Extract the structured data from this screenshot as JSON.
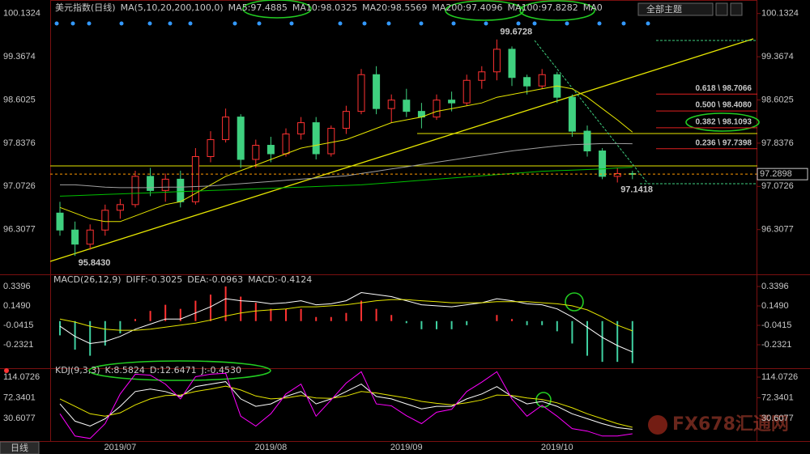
{
  "ui": {
    "theme_button": "全部主题",
    "tab": "日线",
    "watermark": "FX678汇通网"
  },
  "chart_data": [
    {
      "type": "candlestick",
      "legend": [
        {
          "text": "美元指数(日线)",
          "color": "#ffffff"
        },
        {
          "text": "MA(5,10,20,200,100,0)",
          "color": "#ffffff"
        },
        {
          "text": "MA5:97.4885",
          "color": "#ffffff"
        },
        {
          "text": "MA10:98.0325",
          "color": "#e6e600"
        },
        {
          "text": "MA20:98.5569",
          "color": "#ff00ff"
        },
        {
          "text": "MA200:97.4096",
          "color": "#00c000"
        },
        {
          "text": "MA100:97.8282",
          "color": "#a0a0a0"
        },
        {
          "text": "MA0",
          "color": "#ff4040"
        }
      ],
      "categories": [
        null,
        null,
        null,
        null,
        "2019/07",
        null,
        null,
        null,
        null,
        null,
        null,
        null,
        null,
        null,
        "2019/08",
        null,
        null,
        null,
        null,
        null,
        null,
        null,
        null,
        "2019/09",
        null,
        null,
        null,
        null,
        null,
        null,
        null,
        null,
        null,
        "2019/10",
        null,
        null,
        null,
        null,
        null
      ],
      "open": [
        96.6,
        96.3,
        96.05,
        96.3,
        96.65,
        96.75,
        97.25,
        97.0,
        97.2,
        96.8,
        97.6,
        97.9,
        98.3,
        97.55,
        97.8,
        97.65,
        98.0,
        98.2,
        97.65,
        98.1,
        98.4,
        99.05,
        98.45,
        98.6,
        98.4,
        98.3,
        98.6,
        98.55,
        98.95,
        99.1,
        99.5,
        99.0,
        98.85,
        99.05,
        98.65,
        98.05,
        97.7,
        97.25,
        97.3
      ],
      "high": [
        96.8,
        96.45,
        96.4,
        96.75,
        96.85,
        97.35,
        97.4,
        97.3,
        97.35,
        97.75,
        98.05,
        98.45,
        98.35,
        97.9,
        97.95,
        98.1,
        98.3,
        98.3,
        98.15,
        98.5,
        99.15,
        99.2,
        98.7,
        98.8,
        98.55,
        98.7,
        98.75,
        99.05,
        99.2,
        99.6728,
        99.55,
        99.05,
        99.15,
        99.1,
        98.7,
        98.15,
        97.75,
        97.4,
        97.35
      ],
      "low": [
        96.2,
        95.843,
        95.95,
        96.2,
        96.5,
        96.7,
        96.9,
        96.8,
        96.7,
        96.75,
        97.5,
        97.85,
        97.4,
        97.4,
        97.5,
        97.6,
        97.9,
        97.55,
        97.6,
        98.0,
        98.35,
        98.35,
        98.2,
        98.3,
        98.1,
        98.25,
        98.4,
        98.5,
        98.8,
        98.95,
        98.85,
        98.7,
        98.8,
        98.55,
        97.95,
        97.6,
        97.2,
        97.1418,
        97.2
      ],
      "close": [
        96.3,
        96.05,
        96.3,
        96.65,
        96.75,
        97.25,
        97.0,
        97.2,
        96.8,
        97.6,
        97.9,
        98.3,
        97.55,
        97.8,
        97.65,
        98.0,
        98.2,
        97.65,
        98.1,
        98.4,
        99.05,
        98.45,
        98.6,
        98.4,
        98.3,
        98.6,
        98.55,
        98.95,
        99.1,
        99.5,
        99.0,
        98.85,
        99.05,
        98.65,
        98.05,
        97.7,
        97.25,
        97.3,
        97.2898
      ],
      "up_color": "#ff3232",
      "down_color": "#3fd07f",
      "series": [
        {
          "color": "#e6e600",
          "values": [
            96.7,
            96.6,
            96.5,
            96.45,
            96.45,
            96.55,
            96.65,
            96.75,
            96.8,
            96.95,
            97.1,
            97.25,
            97.35,
            97.45,
            97.55,
            97.65,
            97.75,
            97.8,
            97.85,
            97.9,
            98.0,
            98.1,
            98.2,
            98.25,
            98.3,
            98.4,
            98.45,
            98.5,
            98.55,
            98.65,
            98.7,
            98.75,
            98.8,
            98.85,
            98.8,
            98.65,
            98.45,
            98.25,
            98.0325
          ]
        },
        {
          "color": "#a0a0a0",
          "values": [
            97.1,
            97.1,
            97.08,
            97.06,
            97.05,
            97.05,
            97.05,
            97.06,
            97.06,
            97.07,
            97.08,
            97.1,
            97.12,
            97.14,
            97.16,
            97.18,
            97.2,
            97.22,
            97.24,
            97.26,
            97.3,
            97.34,
            97.38,
            97.42,
            97.46,
            97.5,
            97.54,
            97.58,
            97.62,
            97.66,
            97.7,
            97.73,
            97.76,
            97.79,
            97.81,
            97.82,
            97.83,
            97.83,
            97.8282
          ]
        },
        {
          "color": "#00c000",
          "values": [
            96.9,
            96.91,
            96.92,
            96.93,
            96.94,
            96.95,
            96.96,
            96.97,
            96.98,
            96.99,
            97.0,
            97.01,
            97.02,
            97.03,
            97.04,
            97.05,
            97.06,
            97.07,
            97.08,
            97.09,
            97.1,
            97.12,
            97.14,
            97.16,
            97.18,
            97.2,
            97.22,
            97.24,
            97.26,
            97.28,
            97.3,
            97.32,
            97.34,
            97.35,
            97.36,
            97.37,
            97.38,
            97.4,
            97.4096
          ]
        }
      ],
      "ylim": [
        95.53,
        100.3
      ],
      "yticks": [
        100.1324,
        99.3674,
        98.6025,
        97.8376,
        97.0726,
        96.3077
      ],
      "annotations": [
        {
          "value": 99.6728,
          "label": "99.6728",
          "color": "#ff4040"
        },
        {
          "value": 95.843,
          "label": "95.8430",
          "color": "#9fe0a0"
        },
        {
          "value": 97.1418,
          "label": "97.1418",
          "color": "#3fd07f"
        }
      ],
      "last_price": {
        "value": 97.2898,
        "label": "97.2898"
      },
      "fib_levels": [
        {
          "value": 98.7066,
          "label": "0.618 \\ 98.7066"
        },
        {
          "value": 98.408,
          "label": "0.500 \\ 98.4080"
        },
        {
          "value": 98.1093,
          "label": "0.382 \\ 98.1093"
        },
        {
          "value": 97.7398,
          "label": "0.236 \\ 97.7398"
        }
      ]
    },
    {
      "type": "macd",
      "legend": [
        {
          "text": "MACD(26,12,9)",
          "color": "#ffffff"
        },
        {
          "text": "DIFF:-0.3025",
          "color": "#ffffff"
        },
        {
          "text": "DEA:-0.0963",
          "color": "#e6e600"
        },
        {
          "text": "MACD:-0.4124",
          "color": "#ff00ff"
        }
      ],
      "bars": [
        -0.14,
        -0.28,
        -0.34,
        -0.24,
        -0.12,
        0.02,
        0.1,
        0.16,
        0.12,
        0.2,
        0.26,
        0.34,
        0.24,
        0.18,
        0.12,
        0.12,
        0.12,
        0.04,
        0.04,
        0.08,
        0.2,
        0.12,
        0.06,
        -0.02,
        -0.08,
        -0.08,
        -0.08,
        -0.04,
        0.0,
        0.06,
        0.02,
        -0.04,
        -0.04,
        -0.1,
        -0.22,
        -0.34,
        -0.4,
        -0.4,
        -0.4124
      ],
      "up_color": "#ff3232",
      "down_color": "#3fd0a0",
      "series": [
        {
          "color": "#ffffff",
          "values": [
            -0.05,
            -0.15,
            -0.22,
            -0.2,
            -0.15,
            -0.08,
            -0.03,
            0.02,
            0.02,
            0.08,
            0.14,
            0.22,
            0.2,
            0.19,
            0.17,
            0.18,
            0.2,
            0.16,
            0.17,
            0.2,
            0.28,
            0.26,
            0.24,
            0.2,
            0.16,
            0.15,
            0.14,
            0.16,
            0.18,
            0.22,
            0.2,
            0.17,
            0.16,
            0.12,
            0.04,
            -0.06,
            -0.16,
            -0.24,
            -0.3025
          ]
        },
        {
          "color": "#e6e600",
          "values": [
            0.02,
            -0.01,
            -0.05,
            -0.08,
            -0.09,
            -0.09,
            -0.08,
            -0.06,
            -0.04,
            -0.02,
            0.01,
            0.05,
            0.08,
            0.1,
            0.11,
            0.12,
            0.14,
            0.14,
            0.15,
            0.16,
            0.18,
            0.2,
            0.21,
            0.21,
            0.2,
            0.19,
            0.18,
            0.18,
            0.18,
            0.19,
            0.19,
            0.19,
            0.18,
            0.17,
            0.15,
            0.11,
            0.04,
            -0.04,
            -0.0963
          ]
        }
      ],
      "ylim": [
        -0.4386,
        0.4508
      ],
      "yticks": [
        0.3396,
        {
          "value": 0.149,
          "label": "0.1490"
        },
        -0.0415,
        -0.2321
      ]
    },
    {
      "type": "kdj",
      "legend": [
        {
          "text": "KDJ(9,3,3)",
          "color": "#ffffff"
        },
        {
          "text": "K:8.5824",
          "color": "#ffffff"
        },
        {
          "text": "D:12.6471",
          "color": "#e6e600"
        },
        {
          "text": "J:-0.4530",
          "color": "#ff00ff"
        }
      ],
      "series": [
        {
          "color": "#ffffff",
          "values": [
            60,
            25,
            15,
            30,
            55,
            85,
            90,
            85,
            75,
            95,
            100,
            105,
            70,
            55,
            60,
            75,
            85,
            60,
            70,
            85,
            100,
            75,
            70,
            60,
            50,
            55,
            55,
            70,
            80,
            95,
            75,
            60,
            65,
            55,
            40,
            30,
            20,
            12,
            8.5824
          ]
        },
        {
          "color": "#e6e600",
          "values": [
            70,
            55,
            40,
            35,
            42,
            58,
            70,
            77,
            78,
            85,
            90,
            96,
            88,
            76,
            70,
            72,
            77,
            72,
            71,
            76,
            85,
            82,
            77,
            72,
            65,
            61,
            58,
            62,
            68,
            78,
            77,
            72,
            69,
            62,
            52,
            40,
            30,
            20,
            12.6471
          ]
        },
        {
          "color": "#ff00ff",
          "values": [
            40,
            -5,
            -10,
            20,
            80,
            120,
            118,
            100,
            70,
            115,
            120,
            122,
            35,
            15,
            40,
            80,
            100,
            35,
            68,
            102,
            125,
            60,
            56,
            36,
            20,
            43,
            49,
            85,
            104,
            125,
            70,
            35,
            57,
            35,
            10,
            5,
            -5,
            -5,
            -0.453
          ]
        }
      ],
      "ylim": [
        -15.2,
        127.2
      ],
      "yticks": [
        114.0726,
        72.3401,
        30.6077
      ]
    }
  ]
}
